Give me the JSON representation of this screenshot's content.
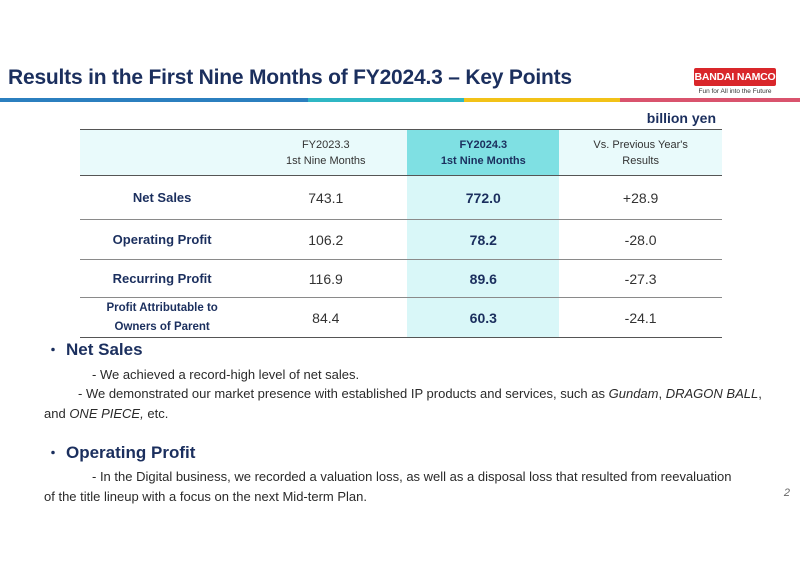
{
  "header": {
    "title": "Results in the First Nine Months of FY2024.3 – Key Points",
    "logo_text": "BANDAI NAMCO",
    "logo_tagline": "Fun for All into the Future"
  },
  "table": {
    "unit": "billion yen",
    "columns": [
      {
        "line1": "FY2023.3",
        "line2": "1st Nine Months"
      },
      {
        "line1": "FY2024.3",
        "line2": "1st Nine Months"
      },
      {
        "line1": "Vs. Previous Year's",
        "line2": "Results"
      }
    ],
    "rows": [
      {
        "label": "Net Sales",
        "prev": "743.1",
        "curr": "772.0",
        "diff": "+28.9"
      },
      {
        "label": "Operating Profit",
        "prev": "106.2",
        "curr": "78.2",
        "diff": "-28.0"
      },
      {
        "label": "Recurring Profit",
        "prev": "116.9",
        "curr": "89.6",
        "diff": "-27.3"
      },
      {
        "label_line1": "Profit Attributable to",
        "label_line2": "Owners of Parent",
        "prev": "84.4",
        "curr": "60.3",
        "diff": "-24.1"
      }
    ]
  },
  "sections": {
    "net_sales": {
      "bullet": "・",
      "title": "Net Sales",
      "point1": "- We achieved a record-high level of net sales.",
      "point2_start": "- We demonstrated our market presence with established IP products and services, such as ",
      "ip1": "Gundam",
      "sep1": ", ",
      "ip2": "DRAGON BALL",
      "sep2": ", and ",
      "ip3": "ONE PIECE,",
      "point2_end": " etc."
    },
    "operating_profit": {
      "bullet": "・",
      "title": "Operating Profit",
      "point1": "- In the Digital business, we recorded a valuation loss, as well as a disposal loss that resulted from reevaluation of the title lineup with a focus on the next Mid-term Plan."
    }
  },
  "footer": {
    "page_number": "2"
  }
}
